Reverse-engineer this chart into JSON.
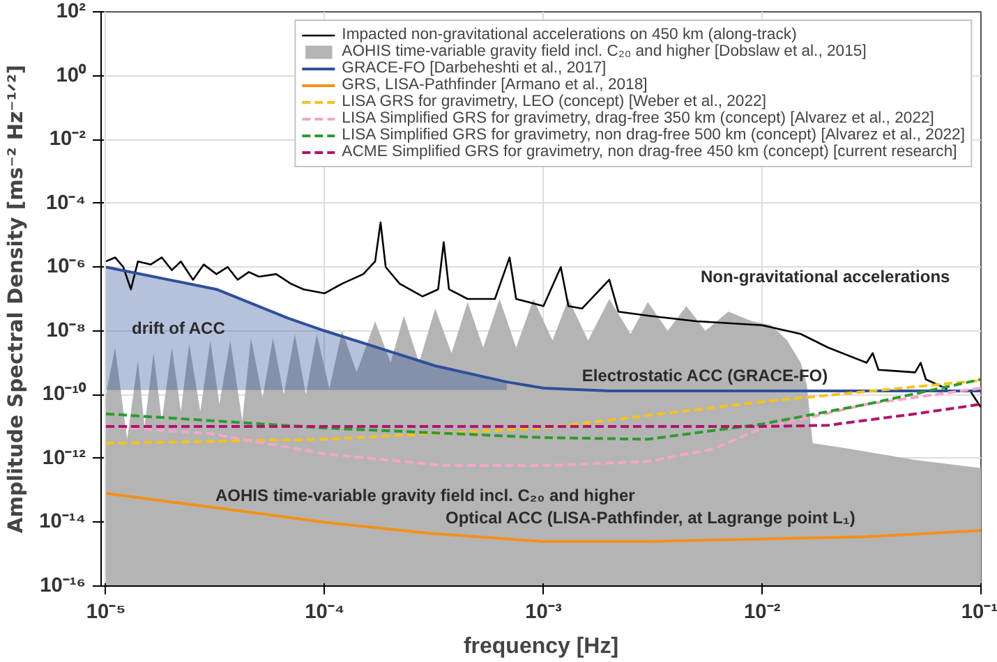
{
  "chart_data": {
    "type": "line",
    "xlabel": "frequency [Hz]",
    "ylabel": "Amplitude Spectral Density [ms⁻² Hz⁻¹ᐟ²]",
    "log": "xy",
    "xlim": [
      9.5e-06,
      0.1
    ],
    "ylim": [
      1e-16,
      100
    ],
    "xticks": [
      {
        "value": 1e-05,
        "label": "10⁻⁵"
      },
      {
        "value": 0.0001,
        "label": "10⁻⁴"
      },
      {
        "value": 0.001,
        "label": "10⁻³"
      },
      {
        "value": 0.01,
        "label": "10⁻²"
      },
      {
        "value": 0.1,
        "label": "10⁻¹"
      }
    ],
    "yticks": [
      {
        "value": 1e-16,
        "label": "10⁻¹⁶"
      },
      {
        "value": 1e-14,
        "label": "10⁻¹⁴"
      },
      {
        "value": 1e-12,
        "label": "10⁻¹²"
      },
      {
        "value": 1e-10,
        "label": "10⁻¹⁰"
      },
      {
        "value": 1e-08,
        "label": "10⁻⁸"
      },
      {
        "value": 1e-06,
        "label": "10⁻⁶"
      },
      {
        "value": 0.0001,
        "label": "10⁻⁴"
      },
      {
        "value": 0.01,
        "label": "10⁻²"
      },
      {
        "value": 1,
        "label": "10⁰"
      },
      {
        "value": 100,
        "label": "10²"
      }
    ],
    "grid": true,
    "legend": "top right",
    "series": [
      {
        "name": "Impacted non-gravitational accelerations on 450 km (along-track)",
        "color": "#000000",
        "line_style": "solid",
        "x": [
          1e-05,
          1.1e-05,
          1.2e-05,
          1.3e-05,
          1.4e-05,
          1.6e-05,
          1.8e-05,
          2e-05,
          2.2e-05,
          2.5e-05,
          2.8e-05,
          3.2e-05,
          3.6e-05,
          4e-05,
          4.5e-05,
          5e-05,
          6e-05,
          7e-05,
          8e-05,
          0.0001,
          0.00012,
          0.00015,
          0.00017,
          0.00018,
          0.00019,
          0.00022,
          0.00028,
          0.00033,
          0.00035,
          0.00037,
          0.00045,
          0.0006,
          0.0007,
          0.00075,
          0.001,
          0.0012,
          0.0013,
          0.0015,
          0.002,
          0.0022,
          0.003,
          0.005,
          0.01,
          0.015,
          0.02,
          0.03,
          0.032,
          0.034,
          0.05,
          0.053,
          0.056,
          0.07,
          0.08,
          0.09,
          0.1
        ],
        "values": [
          1.5e-06,
          2e-06,
          1e-06,
          2e-07,
          1.5e-06,
          1.2e-06,
          2e-06,
          8e-07,
          1.5e-06,
          4e-07,
          1.2e-06,
          6e-07,
          1e-06,
          4e-07,
          7e-07,
          5e-07,
          6e-07,
          3e-07,
          2e-07,
          1.5e-07,
          3e-07,
          6e-07,
          1.5e-06,
          2.5e-05,
          1e-06,
          3e-07,
          1.2e-07,
          2e-07,
          6e-06,
          2e-07,
          1e-07,
          1e-07,
          2e-06,
          1e-07,
          6e-08,
          1e-06,
          6e-08,
          5e-08,
          4e-07,
          4e-08,
          3e-08,
          2e-08,
          1.5e-08,
          8e-09,
          3e-09,
          1e-09,
          2e-09,
          6e-10,
          5e-10,
          1e-09,
          3e-10,
          1.5e-10,
          null,
          1.2e-10,
          4e-11
        ]
      },
      {
        "name": "AOHIS time-variable gravity field incl. C₂₀ and higher [Dobslaw et al., 2015]",
        "color": "#b4b4b4",
        "type": "area",
        "x": [
          1e-05,
          1.1e-05,
          1.25e-05,
          1.4e-05,
          1.5e-05,
          1.65e-05,
          1.8e-05,
          2e-05,
          2.2e-05,
          2.4e-05,
          2.7e-05,
          3e-05,
          3.3e-05,
          3.7e-05,
          4.2e-05,
          4.6e-05,
          5.2e-05,
          5.8e-05,
          6.5e-05,
          7.3e-05,
          8.2e-05,
          9.2e-05,
          0.000105,
          0.00012,
          0.00014,
          0.00017,
          0.0002,
          0.00023,
          0.00027,
          0.00032,
          0.00038,
          0.00045,
          0.00053,
          0.00063,
          0.00075,
          0.0009,
          0.0011,
          0.0013,
          0.0016,
          0.002,
          0.0025,
          0.003,
          0.0037,
          0.0045,
          0.0055,
          0.007,
          0.009,
          0.011,
          0.013,
          0.015,
          0.016,
          0.017,
          0.025,
          0.05,
          0.1
        ],
        "values": [
          1e-10,
          3e-09,
          4e-12,
          1.2e-09,
          1e-11,
          2e-09,
          1.5e-11,
          3e-09,
          3e-11,
          4e-09,
          3e-11,
          5e-09,
          5e-11,
          5e-09,
          1.5e-11,
          6e-09,
          8e-11,
          6e-09,
          1e-10,
          8e-09,
          1e-10,
          8e-09,
          1.5e-10,
          1e-08,
          5e-10,
          2e-08,
          1e-09,
          3e-08,
          1e-09,
          5e-08,
          2e-09,
          8e-08,
          3e-09,
          1e-07,
          3e-09,
          1e-07,
          5e-09,
          1e-07,
          5e-09,
          1e-07,
          8e-09,
          8e-08,
          1e-08,
          6e-08,
          1e-08,
          4e-08,
          2e-08,
          1.5e-08,
          5e-09,
          1e-09,
          2e-10,
          3e-12,
          2e-12,
          9e-13,
          5e-13
        ]
      },
      {
        "name": "GRACE-FO [Darbeheshti et al., 2017]",
        "color": "#2f4f9a",
        "line_style": "solid",
        "x": [
          1e-05,
          3.2e-05,
          6.8e-05,
          0.0001,
          0.00032,
          0.00068,
          0.001,
          0.002,
          0.01,
          0.1
        ],
        "values": [
          1e-06,
          2e-07,
          2.5e-08,
          1e-08,
          8e-10,
          2.5e-10,
          1.6e-10,
          1.3e-10,
          1.3e-10,
          1.3e-10
        ],
        "lower": [
          1.4e-10,
          1.4e-10,
          1.4e-10,
          1.4e-10,
          1.4e-10,
          1.4e-10,
          null,
          null,
          null,
          null
        ],
        "upper": [
          1e-06,
          2e-07,
          2.5e-08,
          1e-08,
          8e-10,
          2.5e-10,
          null,
          null,
          null,
          null
        ]
      },
      {
        "name": "GRS, LISA-Pathfinder [Armano et al., 2018]",
        "color": "#f39019",
        "line_style": "solid",
        "x": [
          1e-05,
          3e-05,
          0.0001,
          0.0003,
          0.001,
          0.003,
          0.01,
          0.03,
          0.1
        ],
        "values": [
          8e-14,
          3e-14,
          1e-14,
          4.5e-15,
          2.5e-15,
          2.5e-15,
          3e-15,
          3.5e-15,
          5.5e-15
        ]
      },
      {
        "name": "LISA GRS for gravimetry, LEO (concept) [Weber et al., 2022]",
        "color": "#f5c21b",
        "line_style": "dashed",
        "x": [
          1e-05,
          0.0001,
          0.001,
          0.01,
          0.1
        ],
        "values": [
          3e-12,
          4e-12,
          9e-12,
          6e-11,
          2.8e-10
        ]
      },
      {
        "name": "LISA Simplified GRS for gravimetry, drag-free 350 km (concept) [Alvarez et al., 2022]",
        "color": "#f4a6c9",
        "line_style": "dashed",
        "x": [
          1e-05,
          3e-05,
          0.0001,
          0.00035,
          0.001,
          0.003,
          0.006,
          0.01,
          0.03,
          0.1
        ],
        "values": [
          1e-11,
          6e-12,
          1.4e-12,
          6e-13,
          6e-13,
          8e-13,
          2e-12,
          9e-12,
          5e-11,
          1.6e-10
        ]
      },
      {
        "name": "LISA Simplified GRS for gravimetry, non drag-free 500 km (concept) [Alvarez et al., 2022]",
        "color": "#2e9a2e",
        "line_style": "dashed",
        "x": [
          1e-05,
          0.0001,
          0.001,
          0.003,
          0.01,
          0.03,
          0.1
        ],
        "values": [
          2.5e-11,
          9e-12,
          4.5e-12,
          4e-12,
          1.2e-11,
          5e-11,
          3e-10
        ]
      },
      {
        "name": "ACME Simplified GRS for gravimetry, non drag-free 450 km (concept) [current research]",
        "color": "#b0146e",
        "line_style": "dashed",
        "x": [
          1e-05,
          0.0001,
          0.001,
          0.01,
          0.02,
          0.05,
          0.1
        ],
        "values": [
          1e-11,
          1e-11,
          1e-11,
          1e-11,
          1.1e-11,
          2.5e-11,
          5e-11
        ]
      }
    ],
    "annotations": [
      "drift of ACC",
      {
        "text": "Electrostatic ACC (GRACE-FO)",
        "x": 0.0015,
        "y": 2e-10
      },
      "Non-gravitational accelerations",
      "AOHIS time-variable gravity field incl. C₂₀ and higher",
      "Optical ACC (LISA-Pathfinder, at Lagrange point L₁)"
    ]
  }
}
